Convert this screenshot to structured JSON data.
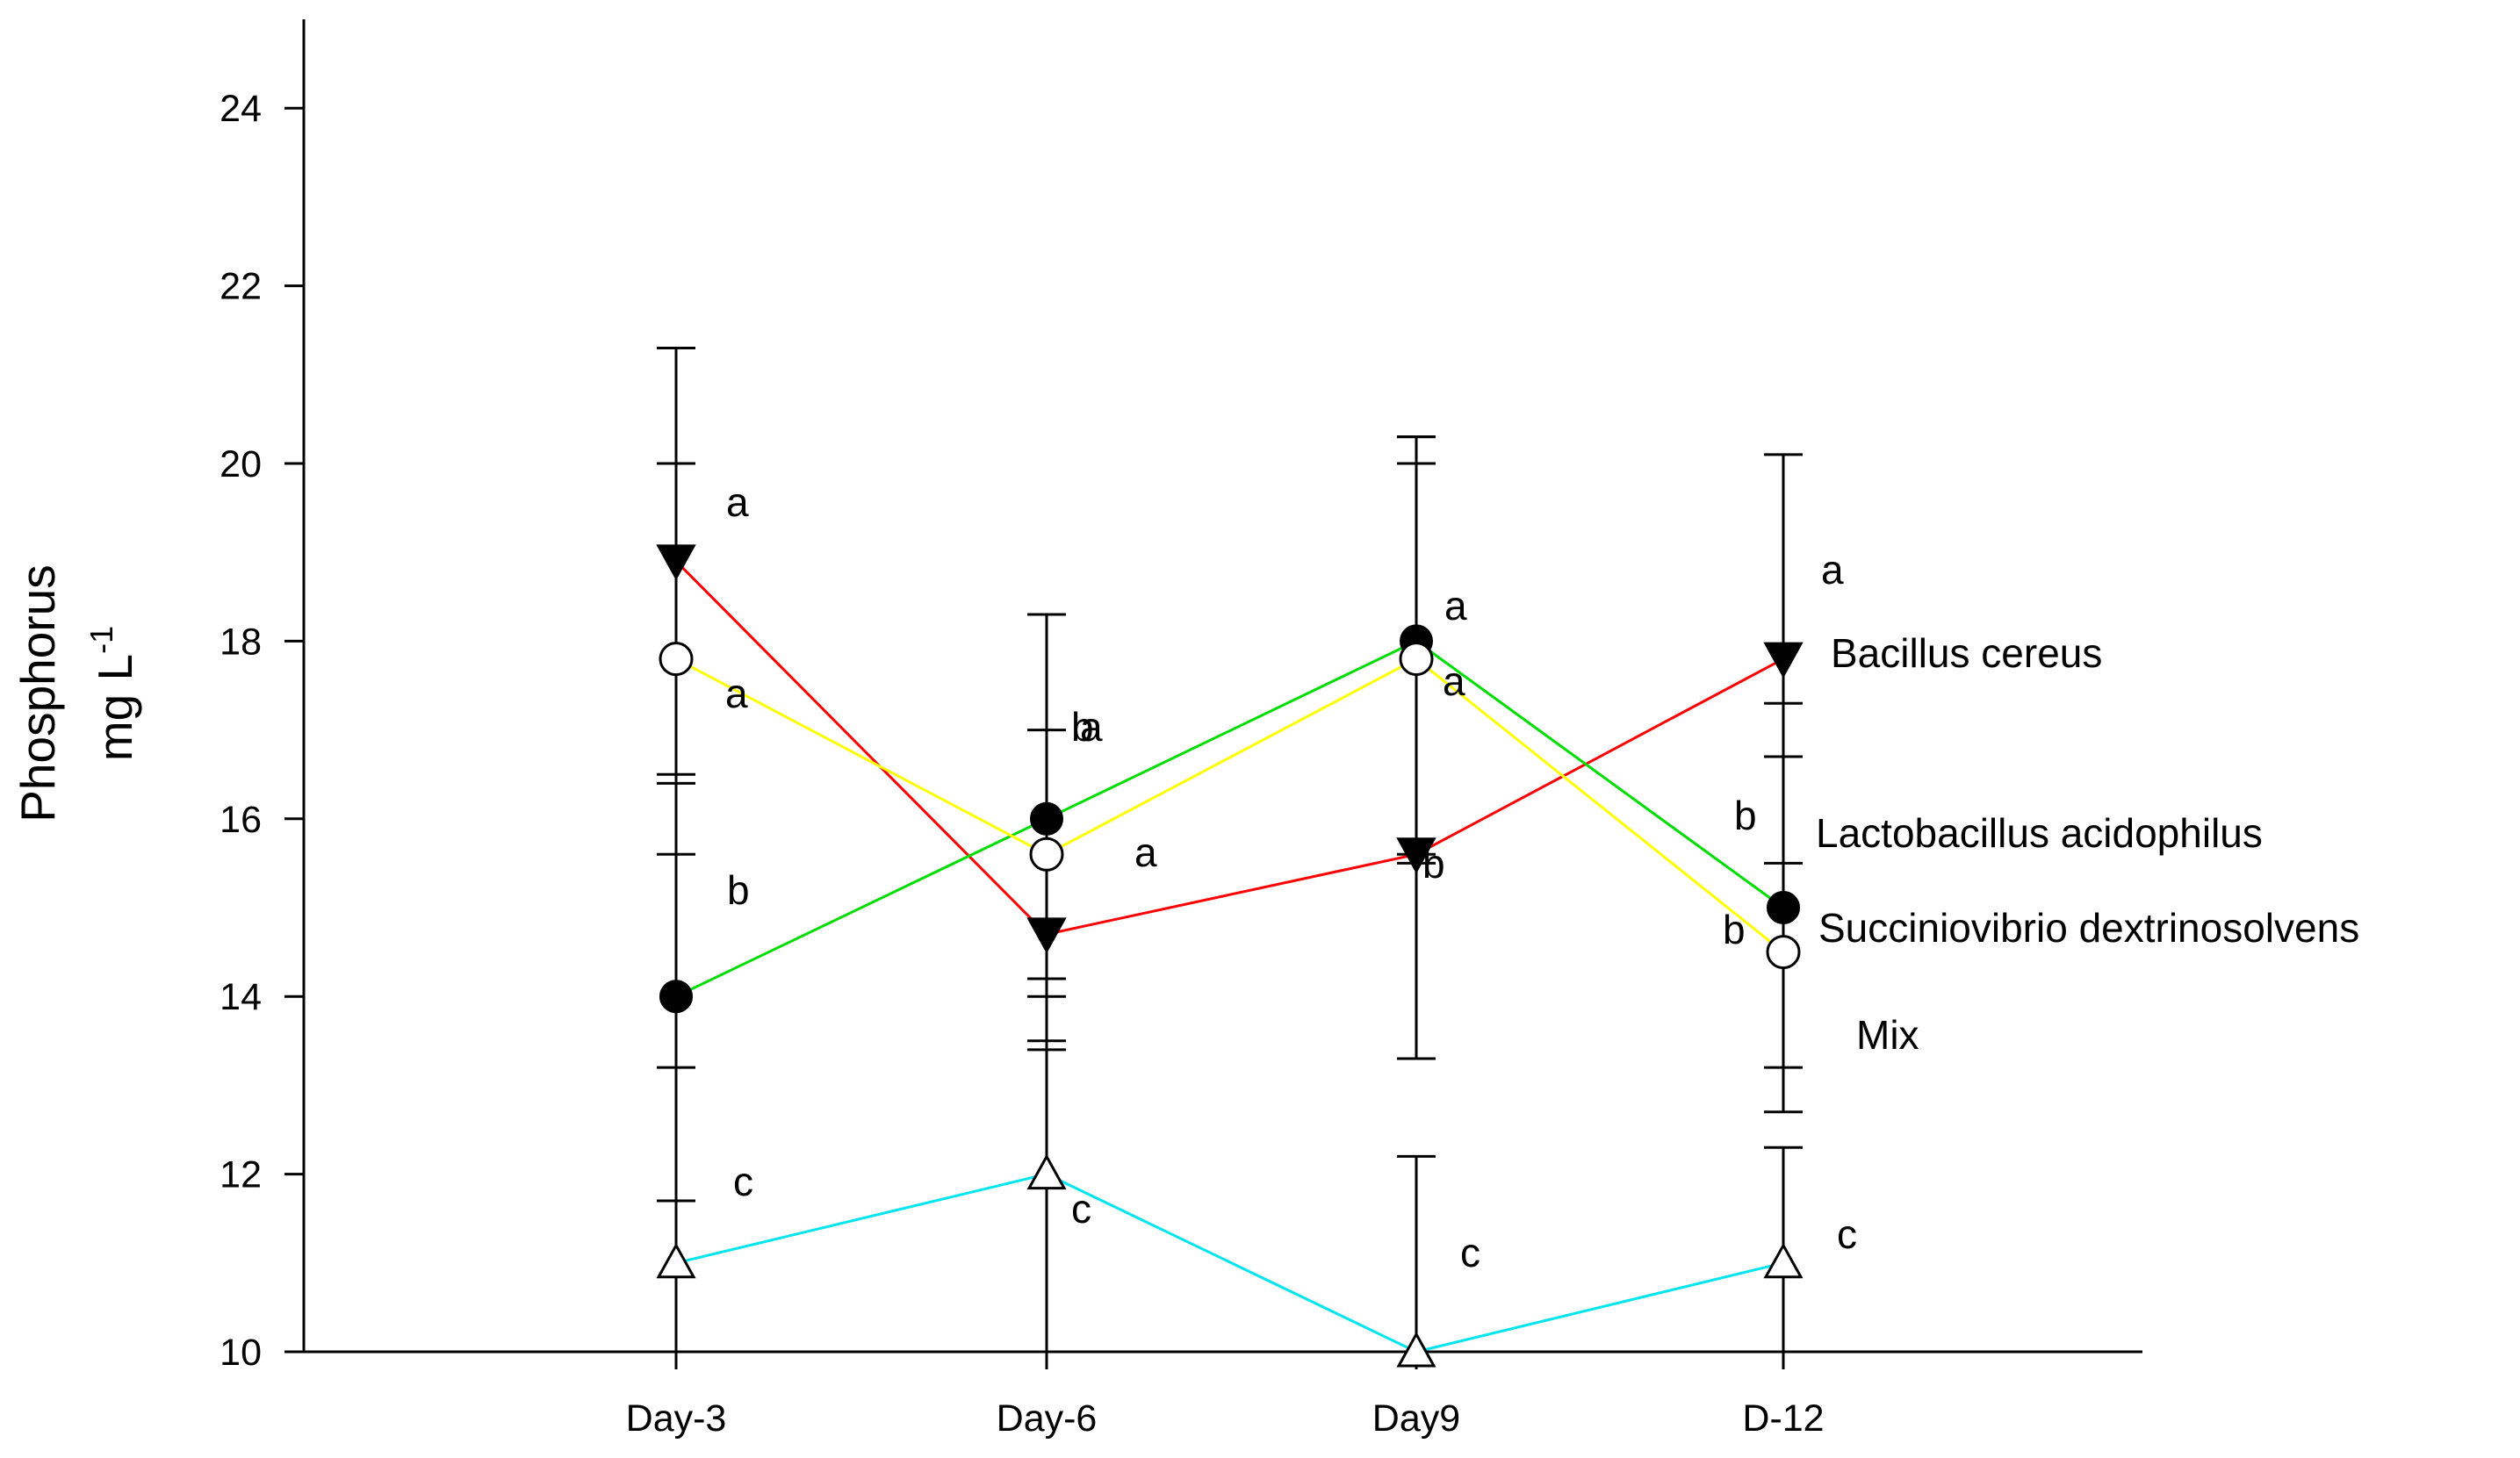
{
  "chart_data": {
    "type": "line",
    "title": "",
    "xlabel": "",
    "ylabel": "Phosphorus",
    "ylabel_unit": "mg L",
    "ylabel_unit_sup": "-1",
    "categories": [
      "Day-3",
      "Day-6",
      "Day9",
      "D-12"
    ],
    "ylim": [
      10,
      25
    ],
    "yticks": [
      10,
      12,
      14,
      16,
      18,
      20,
      22,
      24
    ],
    "grid": false,
    "series": [
      {
        "name": "Bacillus cereus",
        "color": "#ff0000",
        "marker": "triangle-down-filled",
        "values": [
          18.9,
          14.7,
          15.6,
          17.8
        ],
        "err_low": [
          16.4,
          13.4,
          13.3,
          15.5
        ],
        "err_high": [
          21.3,
          18.3,
          20.3,
          20.1
        ],
        "letters": [
          "a",
          "b",
          "b",
          "a"
        ]
      },
      {
        "name": "Lactobacillus acidophilus",
        "color": "#00dd00",
        "marker": "circle-filled",
        "values": [
          14.0,
          16.0,
          18.0,
          15.0
        ],
        "err_low": [
          11.7,
          14.2,
          15.6,
          13.2
        ],
        "err_high": [
          16.5,
          18.3,
          20.3,
          16.7
        ],
        "letters": [
          "b",
          "a",
          "a",
          "b"
        ]
      },
      {
        "name": "Succiniovibrio dextrinosolvens",
        "color": "#ffff00",
        "marker": "circle-open",
        "values": [
          17.8,
          15.6,
          17.8,
          14.5
        ],
        "err_low": [
          15.6,
          14.0,
          15.5,
          12.7
        ],
        "err_high": [
          20.0,
          17.0,
          20.0,
          17.3
        ],
        "letters": [
          "a",
          "a",
          "a",
          "b"
        ]
      },
      {
        "name": "Mix",
        "color": "#00e5ee",
        "marker": "triangle-up-open",
        "values": [
          11.0,
          12.0,
          10.0,
          11.0
        ],
        "err_low": [
          10.0,
          10.0,
          10.0,
          10.0
        ],
        "err_high": [
          13.2,
          13.5,
          12.2,
          12.3
        ],
        "letters": [
          "c",
          "c",
          "c",
          "c"
        ]
      }
    ],
    "legend_labels": [
      "Bacillus cereus",
      "Lactobacillus acidophilus",
      "Succiniovibrio dextrinosolvens",
      "Mix"
    ]
  }
}
